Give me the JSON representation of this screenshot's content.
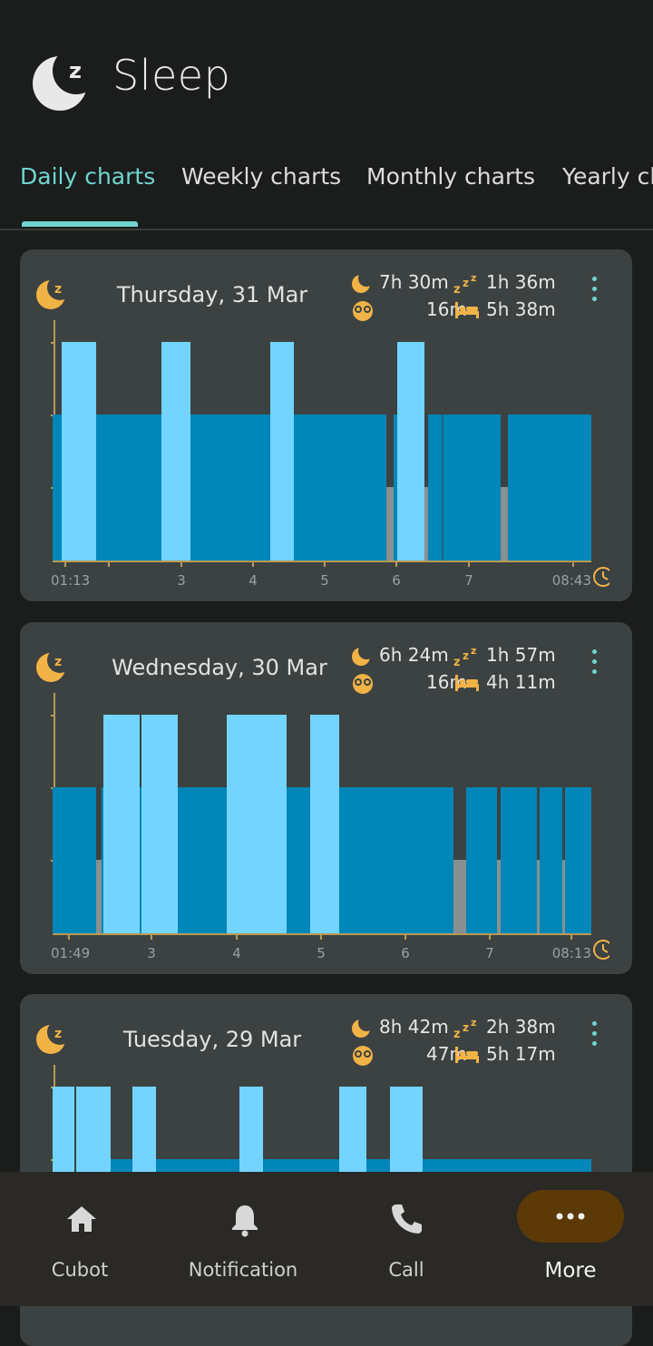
{
  "app": {
    "title": "Sleep"
  },
  "tabs": [
    {
      "label": "Daily charts"
    },
    {
      "label": "Weekly charts"
    },
    {
      "label": "Monthly charts"
    },
    {
      "label": "Yearly charts"
    }
  ],
  "cards": [
    {
      "date": "Thursday, 31 Mar",
      "total_sleep": "7h 30m",
      "deep_sleep": "1h 36m",
      "awake": "16m",
      "in_bed": "5h 38m",
      "start_label": "01:13",
      "end_label": "08:43",
      "x_ticks": [
        "3",
        "4",
        "5",
        "6",
        "7"
      ]
    },
    {
      "date": "Wednesday, 30 Mar",
      "total_sleep": "6h 24m",
      "deep_sleep": "1h 57m",
      "awake": "16m",
      "in_bed": "4h 11m",
      "start_label": "01:49",
      "end_label": "08:13",
      "x_ticks": [
        "3",
        "4",
        "5",
        "6",
        "7"
      ]
    },
    {
      "date": "Tuesday, 29 Mar",
      "total_sleep": "8h 42m",
      "deep_sleep": "2h 38m",
      "awake": "47m",
      "in_bed": "5h 17m"
    }
  ],
  "bottom_nav": [
    {
      "label": "Cubot",
      "icon": "home-icon"
    },
    {
      "label": "Notification",
      "icon": "bell-icon"
    },
    {
      "label": "Call",
      "icon": "phone-icon"
    },
    {
      "label": "More",
      "icon": "more-icon"
    }
  ],
  "colors": {
    "accent": "#6fd6cf",
    "icon_gold": "#f2b346",
    "deep": "#72d4ff",
    "light": "#0086b8",
    "awake": "#8a8f8f",
    "card": "#3c4242",
    "more_pill": "#5b3a07"
  }
}
